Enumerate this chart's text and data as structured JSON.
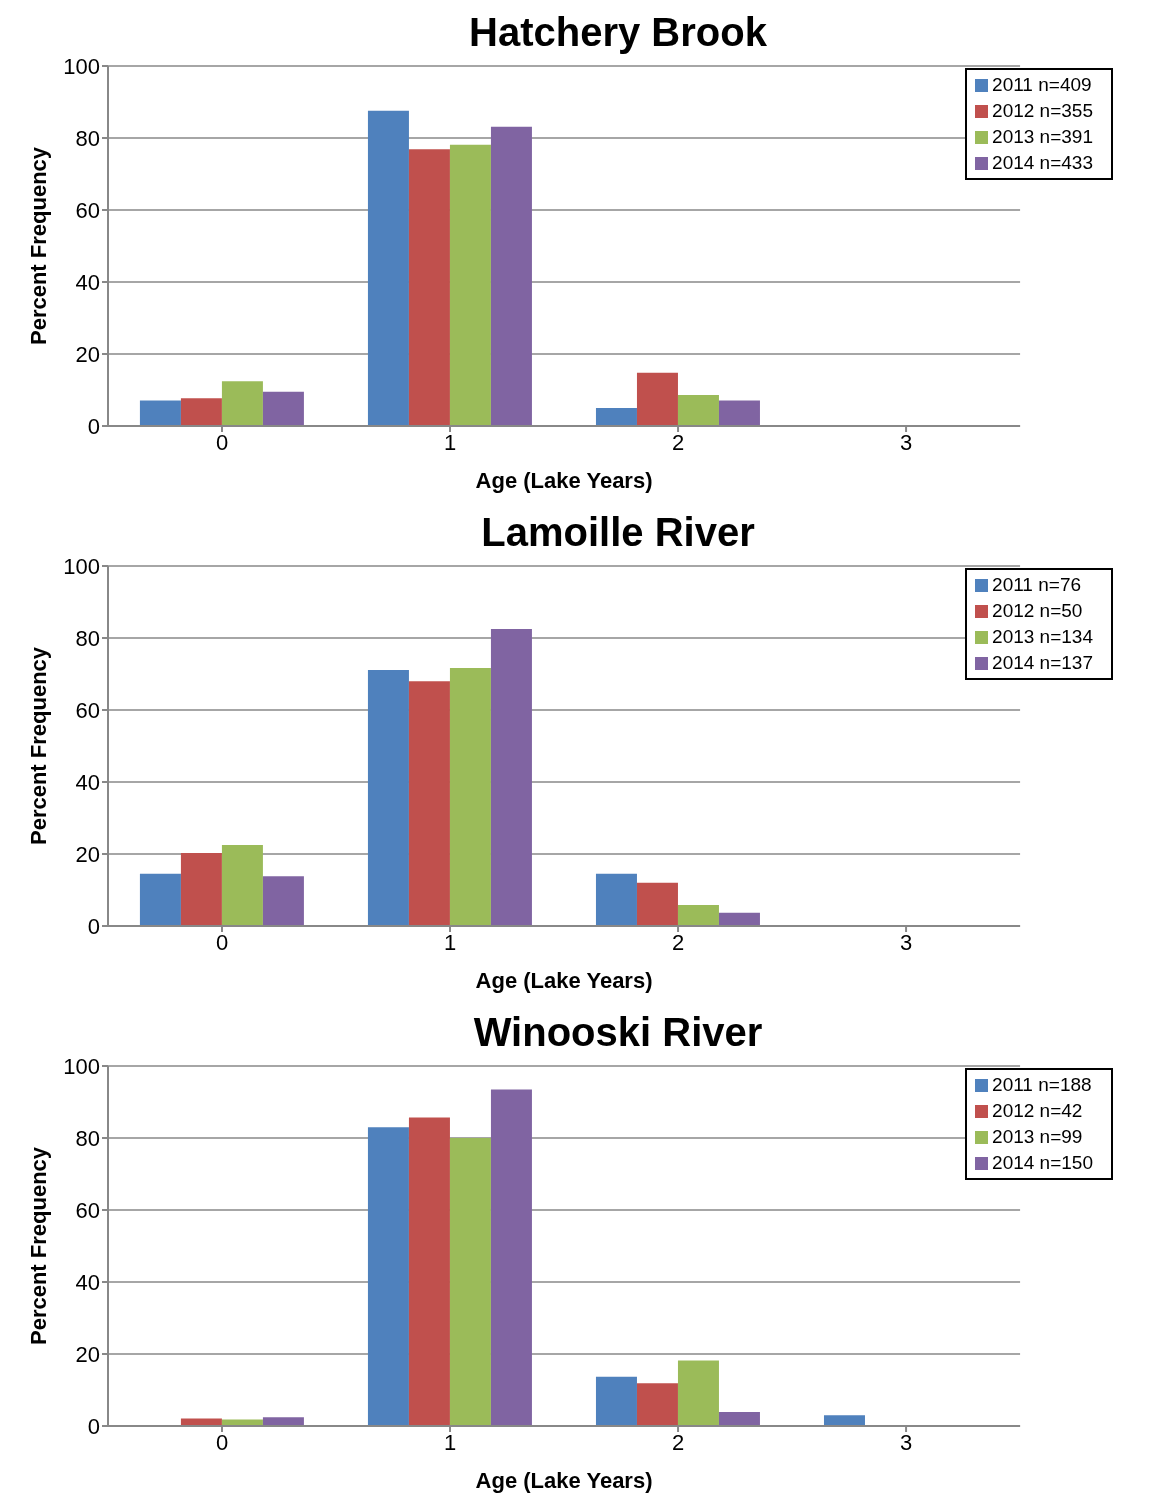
{
  "chart_data": [
    {
      "type": "bar",
      "title": "Hatchery Brook",
      "xlabel": "Age (Lake Years)",
      "ylabel": "Percent Frequency",
      "categories": [
        "0",
        "1",
        "2",
        "3"
      ],
      "ylim": [
        0,
        100
      ],
      "yticks": [
        0,
        20,
        40,
        60,
        80,
        100
      ],
      "grid": "y",
      "legend": "top right",
      "series": [
        {
          "name": "2011 n=409",
          "color": "#4f81bd",
          "values": [
            7.1,
            87.6,
            5.0,
            0
          ]
        },
        {
          "name": "2012 n=355",
          "color": "#c0504d",
          "values": [
            7.7,
            76.9,
            14.8,
            null
          ]
        },
        {
          "name": "2013 n=391",
          "color": "#9bbb59",
          "values": [
            12.4,
            78.1,
            8.6,
            null
          ]
        },
        {
          "name": "2014 n=433",
          "color": "#8064a2",
          "values": [
            9.5,
            83.1,
            7.1,
            null
          ]
        }
      ]
    },
    {
      "type": "bar",
      "title": "Lamoille River",
      "xlabel": "Age (Lake Years)",
      "ylabel": "Percent Frequency",
      "categories": [
        "0",
        "1",
        "2",
        "3"
      ],
      "ylim": [
        0,
        100
      ],
      "yticks": [
        0,
        20,
        40,
        60,
        80,
        100
      ],
      "grid": "y",
      "legend": "top right",
      "series": [
        {
          "name": "2011 n=76",
          "color": "#4f81bd",
          "values": [
            14.5,
            71.1,
            14.5,
            0
          ]
        },
        {
          "name": "2012 n=50",
          "color": "#c0504d",
          "values": [
            20.3,
            68.0,
            12.0,
            0
          ]
        },
        {
          "name": "2013 n=134",
          "color": "#9bbb59",
          "values": [
            22.5,
            71.7,
            5.8,
            0
          ]
        },
        {
          "name": "2014 n=137",
          "color": "#8064a2",
          "values": [
            13.8,
            82.5,
            3.7,
            0
          ]
        }
      ]
    },
    {
      "type": "bar",
      "title": "Winooski River",
      "xlabel": "Age (Lake Years)",
      "ylabel": "Percent Frequency",
      "categories": [
        "0",
        "1",
        "2",
        "3"
      ],
      "ylim": [
        0,
        100
      ],
      "yticks": [
        0,
        20,
        40,
        60,
        80,
        100
      ],
      "grid": "y",
      "legend": "top right",
      "series": [
        {
          "name": "2011 n=188",
          "color": "#4f81bd",
          "values": [
            0,
            83.0,
            13.7,
            3.0
          ]
        },
        {
          "name": "2012 n=42",
          "color": "#c0504d",
          "values": [
            2.1,
            85.7,
            11.9,
            0
          ]
        },
        {
          "name": "2013 n=99",
          "color": "#9bbb59",
          "values": [
            1.8,
            80.0,
            18.2,
            0
          ]
        },
        {
          "name": "2014 n=150",
          "color": "#8064a2",
          "values": [
            2.4,
            93.5,
            3.9,
            0
          ]
        }
      ]
    }
  ]
}
